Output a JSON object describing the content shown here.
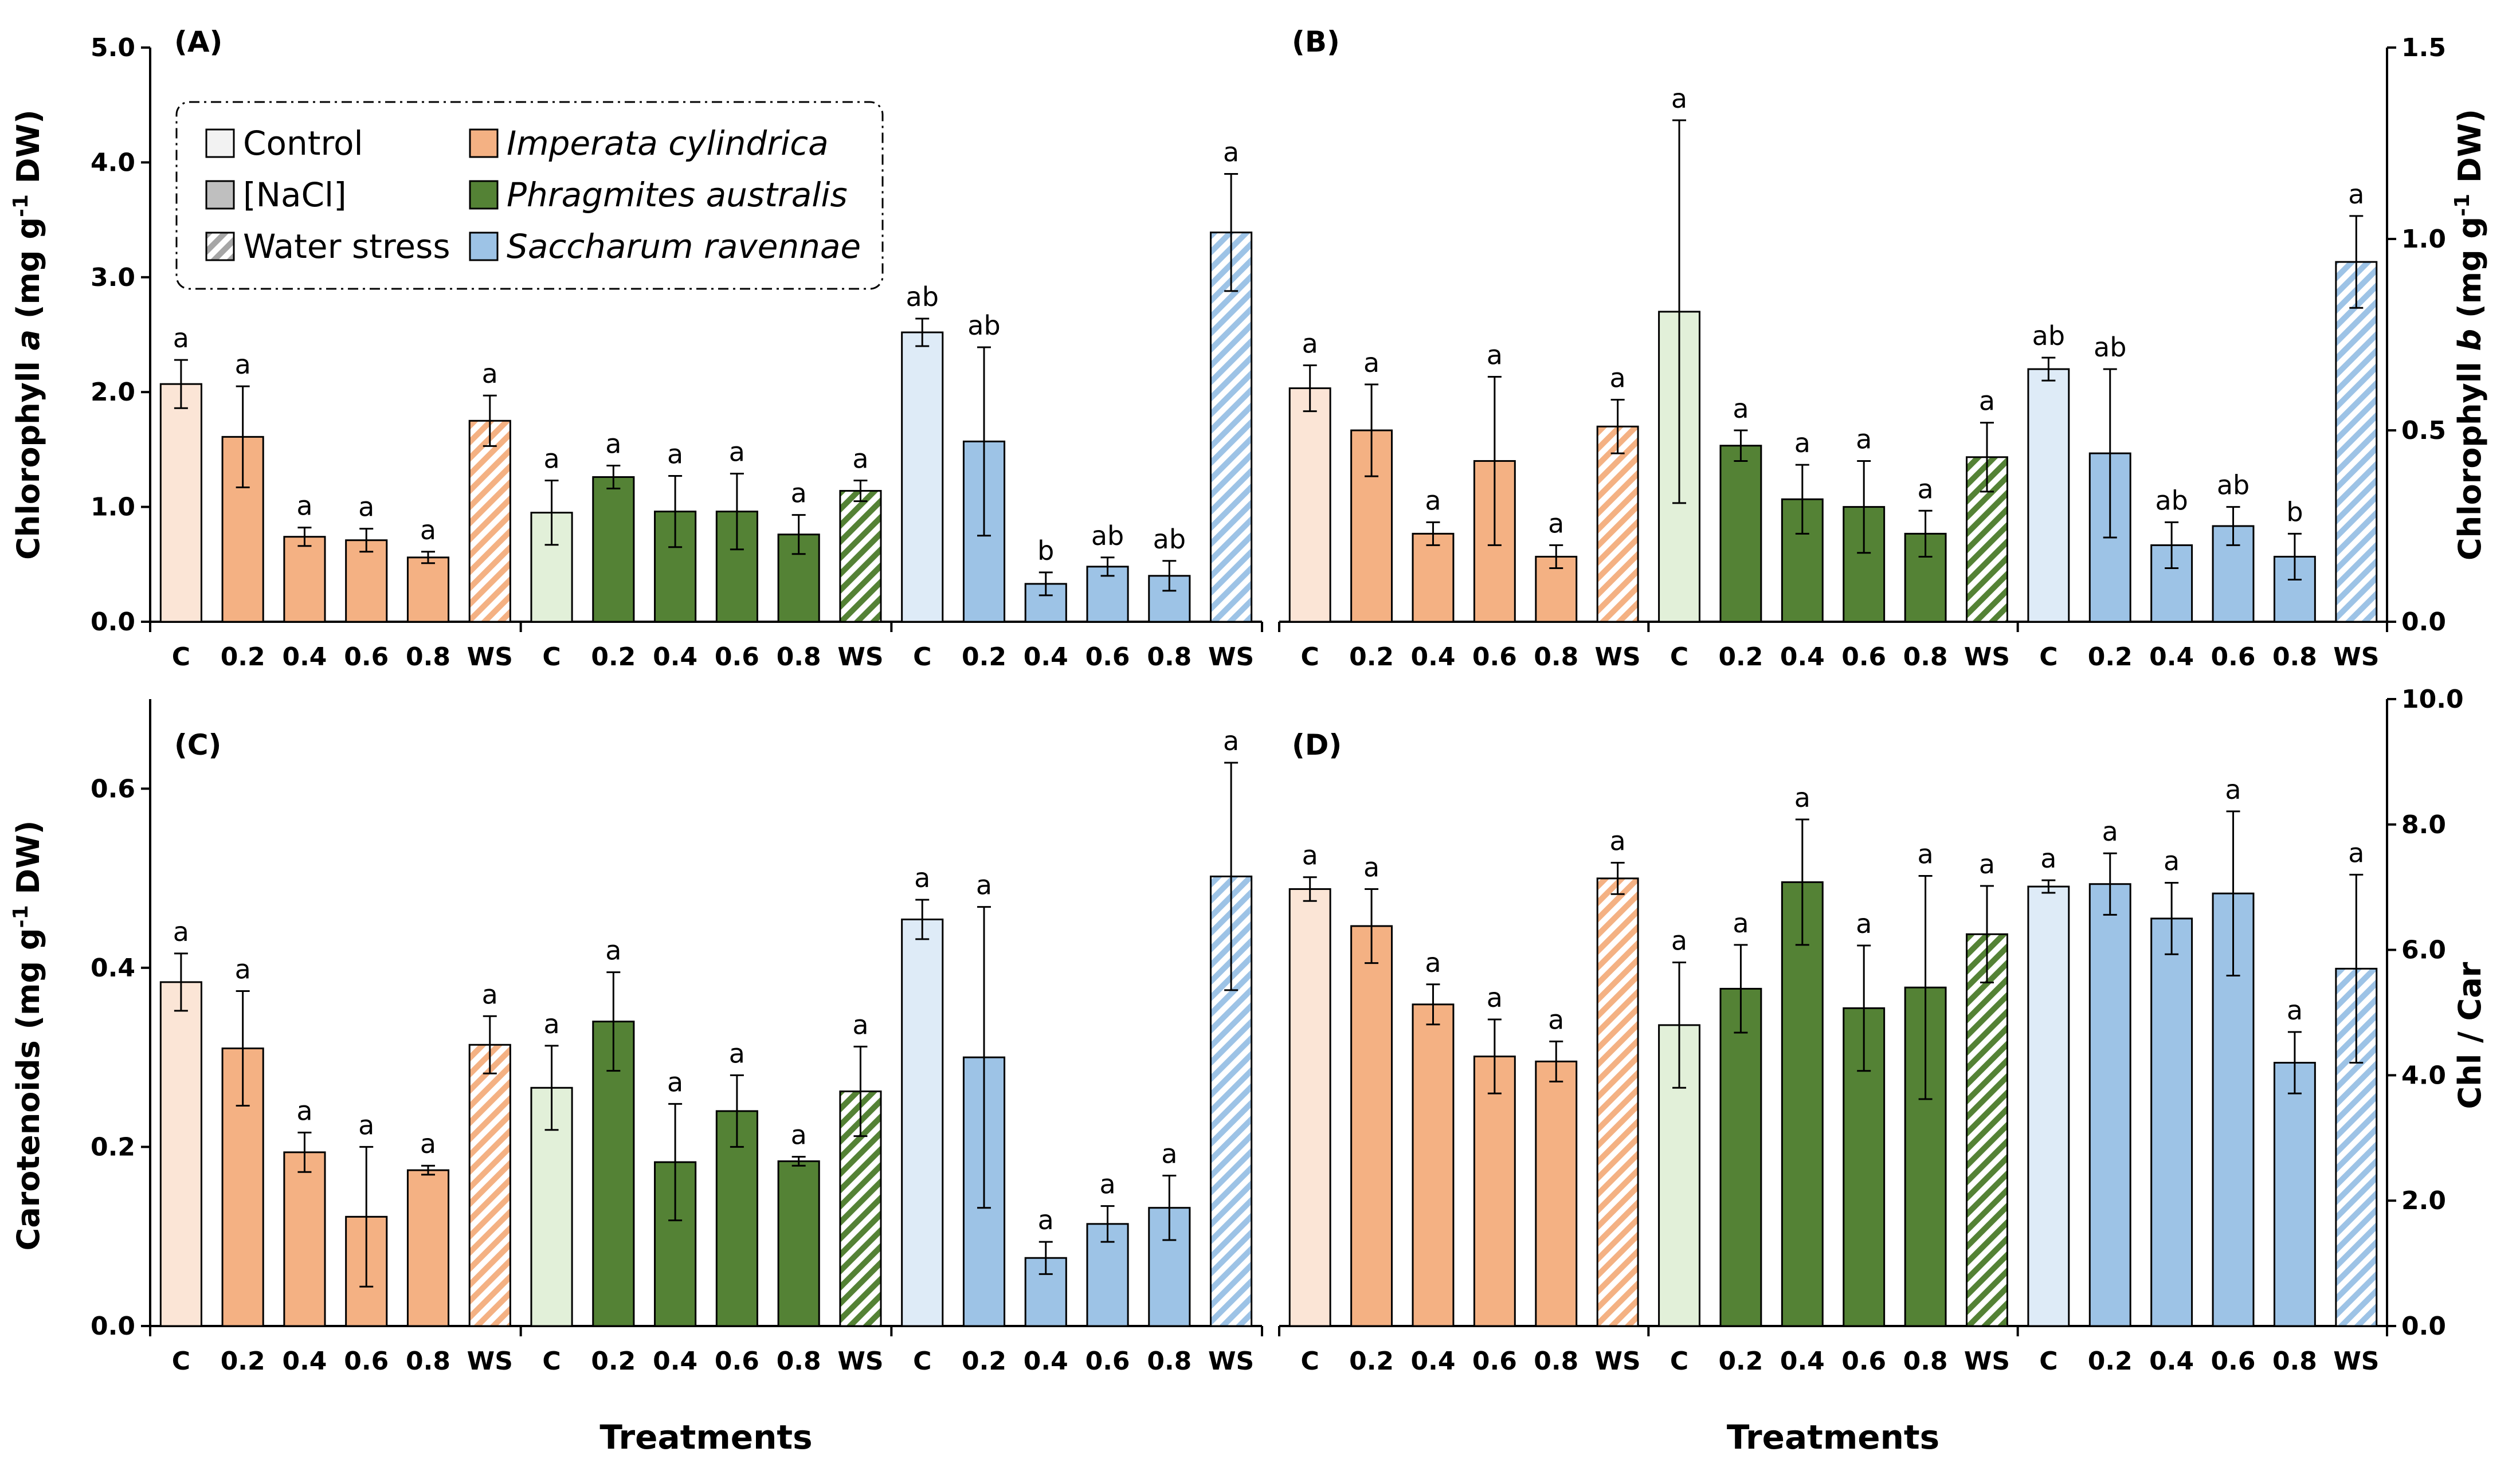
{
  "colors": {
    "imperata_dark": "#f4b183",
    "imperata_light": "#fbe5d6",
    "phragmites_dark": "#548235",
    "phragmites_light": "#e2f0d9",
    "saccharum_dark": "#9dc3e6",
    "saccharum_light": "#deebf7",
    "axis": "#000000"
  },
  "legend": {
    "items": [
      {
        "label": "Control",
        "kind": "control"
      },
      {
        "label": "Imperata cylindrica",
        "kind": "species",
        "species": 0
      },
      {
        "label": "[NaCl]",
        "kind": "nacl"
      },
      {
        "label": "Phragmites australis",
        "kind": "species",
        "species": 1
      },
      {
        "label": "Water stress",
        "kind": "ws"
      },
      {
        "label": "Saccharum ravennae",
        "kind": "species",
        "species": 2
      }
    ]
  },
  "chart_data": [
    {
      "panel": "(A)",
      "type": "bar",
      "ylabel_parts": [
        "Chlorophyll ",
        "a",
        " (mg g",
        "-1",
        " DW)"
      ],
      "axis_side": "left",
      "xlabel": "",
      "ylim": [
        0,
        5
      ],
      "yticks": [
        "0.0",
        "1.0",
        "2.0",
        "3.0",
        "4.0",
        "5.0"
      ],
      "categories": [
        "C",
        "0.2",
        "0.4",
        "0.6",
        "0.8",
        "WS"
      ],
      "series": [
        {
          "name": "Imperata cylindrica",
          "values": [
            2.07,
            1.61,
            0.74,
            0.71,
            0.56,
            1.75
          ],
          "errors": [
            0.21,
            0.44,
            0.08,
            0.1,
            0.05,
            0.22
          ],
          "letters": [
            "a",
            "a",
            "a",
            "a",
            "a",
            "a"
          ]
        },
        {
          "name": "Phragmites australis",
          "values": [
            0.95,
            1.26,
            0.96,
            0.96,
            0.76,
            1.14
          ],
          "errors": [
            0.28,
            0.1,
            0.31,
            0.33,
            0.17,
            0.09
          ],
          "letters": [
            "a",
            "a",
            "a",
            "a",
            "a",
            "a"
          ]
        },
        {
          "name": "Saccharum ravennae",
          "values": [
            2.52,
            1.57,
            0.33,
            0.48,
            0.4,
            3.39
          ],
          "errors": [
            0.12,
            0.82,
            0.1,
            0.08,
            0.13,
            0.51
          ],
          "letters": [
            "ab",
            "ab",
            "b",
            "ab",
            "ab",
            "a"
          ]
        }
      ]
    },
    {
      "panel": "(B)",
      "type": "bar",
      "ylabel_parts": [
        "Chlorophyll ",
        "b",
        " (mg g",
        "-1",
        " DW)"
      ],
      "axis_side": "right",
      "xlabel": "",
      "ylim": [
        0,
        1.5
      ],
      "yticks": [
        "0.0",
        "0.5",
        "1.0",
        "1.5"
      ],
      "categories": [
        "C",
        "0.2",
        "0.4",
        "0.6",
        "0.8",
        "WS"
      ],
      "series": [
        {
          "name": "Imperata cylindrica",
          "values": [
            0.61,
            0.5,
            0.23,
            0.42,
            0.17,
            0.51
          ],
          "errors": [
            0.06,
            0.12,
            0.03,
            0.22,
            0.03,
            0.07
          ],
          "letters": [
            "a",
            "a",
            "a",
            "a",
            "a",
            "a"
          ]
        },
        {
          "name": "Phragmites australis",
          "values": [
            0.81,
            0.46,
            0.32,
            0.3,
            0.23,
            0.43
          ],
          "errors": [
            0.5,
            0.04,
            0.09,
            0.12,
            0.06,
            0.09
          ],
          "letters": [
            "a",
            "a",
            "a",
            "a",
            "a",
            "a"
          ]
        },
        {
          "name": "Saccharum ravennae",
          "values": [
            0.66,
            0.44,
            0.2,
            0.25,
            0.17,
            0.94
          ],
          "errors": [
            0.03,
            0.22,
            0.06,
            0.05,
            0.06,
            0.12
          ],
          "letters": [
            "ab",
            "ab",
            "ab",
            "ab",
            "b",
            "a"
          ]
        }
      ]
    },
    {
      "panel": "(C)",
      "type": "bar",
      "ylabel_parts": [
        "Carotenoids (mg g",
        "-1",
        " DW)"
      ],
      "axis_side": "left",
      "xlabel": "Treatments",
      "ylim": [
        0,
        0.7
      ],
      "yticks": [
        "0.0",
        "0.2",
        "0.4",
        "0.6"
      ],
      "categories": [
        "C",
        "0.2",
        "0.4",
        "0.6",
        "0.8",
        "WS"
      ],
      "series": [
        {
          "name": "Imperata cylindrica",
          "values": [
            0.384,
            0.31,
            0.194,
            0.122,
            0.174,
            0.314
          ],
          "errors": [
            0.032,
            0.064,
            0.022,
            0.078,
            0.005,
            0.032
          ],
          "letters": [
            "a",
            "a",
            "a",
            "a",
            "a",
            "a"
          ]
        },
        {
          "name": "Phragmites australis",
          "values": [
            0.266,
            0.34,
            0.183,
            0.24,
            0.184,
            0.262
          ],
          "errors": [
            0.047,
            0.055,
            0.065,
            0.04,
            0.005,
            0.05
          ],
          "letters": [
            "a",
            "a",
            "a",
            "a",
            "a",
            "a"
          ]
        },
        {
          "name": "Saccharum ravennae",
          "values": [
            0.454,
            0.3,
            0.076,
            0.114,
            0.132,
            0.502
          ],
          "errors": [
            0.022,
            0.168,
            0.018,
            0.02,
            0.036,
            0.127
          ],
          "letters": [
            "a",
            "a",
            "a",
            "a",
            "a",
            "a"
          ]
        }
      ]
    },
    {
      "panel": "(D)",
      "type": "bar",
      "ylabel_parts": [
        "Chl / Car"
      ],
      "axis_side": "right",
      "xlabel": "Treatments",
      "ylim": [
        0,
        10
      ],
      "yticks": [
        "0.0",
        "2.0",
        "4.0",
        "6.0",
        "8.0",
        "10.0"
      ],
      "categories": [
        "C",
        "0.2",
        "0.4",
        "0.6",
        "0.8",
        "WS"
      ],
      "series": [
        {
          "name": "Imperata cylindrica",
          "values": [
            6.97,
            6.38,
            5.13,
            4.3,
            4.22,
            7.14
          ],
          "errors": [
            0.19,
            0.59,
            0.32,
            0.59,
            0.32,
            0.25
          ],
          "letters": [
            "a",
            "a",
            "a",
            "a",
            "a",
            "a"
          ]
        },
        {
          "name": "Phragmites australis",
          "values": [
            4.8,
            5.38,
            7.08,
            5.07,
            5.4,
            6.25
          ],
          "errors": [
            1.0,
            0.7,
            1.0,
            1.0,
            1.78,
            0.77
          ],
          "letters": [
            "a",
            "a",
            "a",
            "a",
            "a",
            "a"
          ]
        },
        {
          "name": "Saccharum ravennae",
          "values": [
            7.01,
            7.05,
            6.5,
            6.9,
            4.2,
            5.7
          ],
          "errors": [
            0.1,
            0.49,
            0.57,
            1.31,
            0.49,
            1.5
          ],
          "letters": [
            "a",
            "a",
            "a",
            "a",
            "a",
            "a"
          ]
        }
      ]
    }
  ]
}
